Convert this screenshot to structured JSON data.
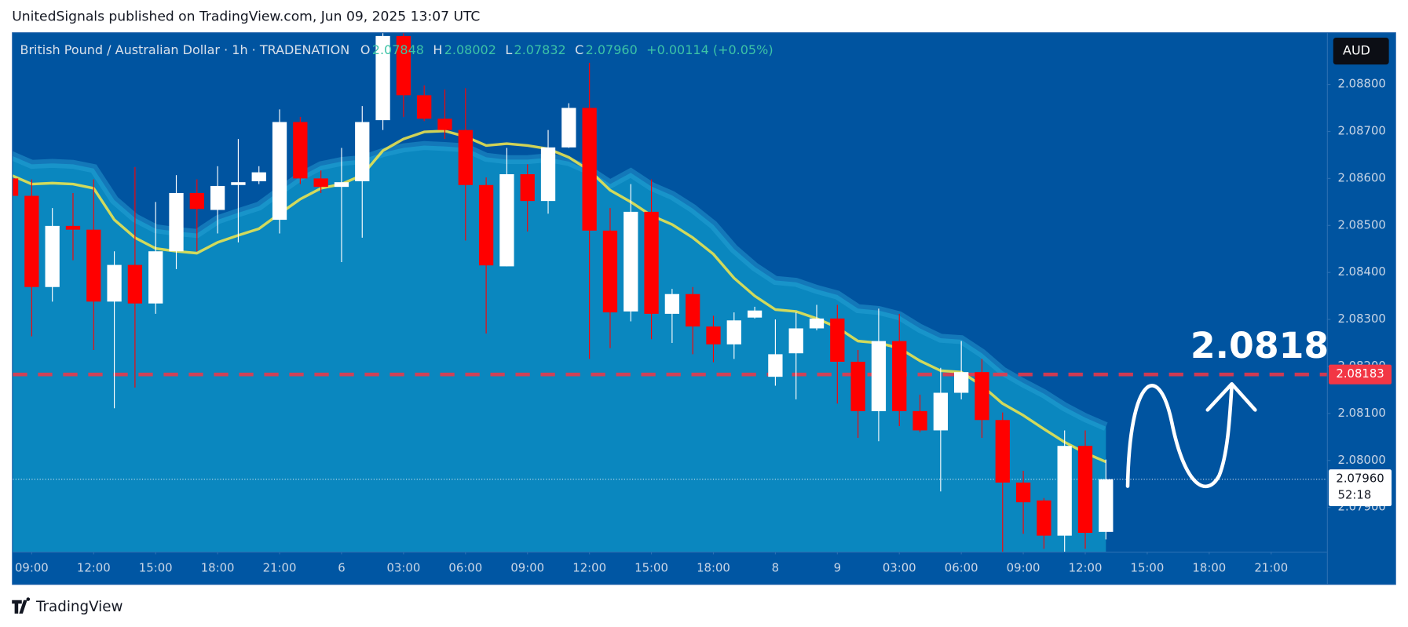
{
  "header": {
    "attribution": "UnitedSignals published on TradingView.com, Jun 09, 2025 13:07 UTC",
    "brand": "TradingView"
  },
  "chart_data": {
    "type": "candlestick",
    "symbol": "British Pound / Australian Dollar · 1h · TRADENATION",
    "ohlc_legend": [
      {
        "key": "O",
        "value": "2.07848"
      },
      {
        "key": "H",
        "value": "2.08002"
      },
      {
        "key": "L",
        "value": "2.07832"
      },
      {
        "key": "C",
        "value": "2.07960"
      }
    ],
    "change": "+0.00114 (+0.05%)",
    "currency": "AUD",
    "annotation": "2.0818",
    "up_color": "#ffffff",
    "down_color": "#ff0000",
    "open": [
      2.086,
      2.08563,
      2.08369,
      2.08499,
      2.08491,
      2.08338,
      2.08416,
      2.08334,
      2.08445,
      2.08569,
      2.08533,
      2.08586,
      2.08594,
      2.08512,
      2.0872,
      2.086,
      2.08582,
      2.08594,
      2.08724,
      2.08903,
      2.08777,
      2.08727,
      2.08703,
      2.08586,
      2.08413,
      2.08609,
      2.08552,
      2.08666,
      2.0875,
      2.08489,
      2.08317,
      2.08529,
      2.08312,
      2.08354,
      2.08285,
      2.08247,
      2.08304,
      2.08178,
      2.08228,
      2.08281,
      2.08302,
      2.0821,
      2.08105,
      2.08254,
      2.08105,
      2.08064,
      2.08144,
      2.08188,
      2.08086,
      2.07953,
      2.07915,
      2.0784,
      2.08031,
      2.07848
    ],
    "high": [
      2.086,
      2.08598,
      2.08537,
      2.08569,
      2.08598,
      2.08445,
      2.08624,
      2.0855,
      2.08607,
      2.08598,
      2.08626,
      2.08684,
      2.08626,
      2.08747,
      2.08731,
      2.08617,
      2.08665,
      2.08754,
      2.08909,
      2.08909,
      2.08798,
      2.08789,
      2.08792,
      2.08602,
      2.08665,
      2.0863,
      2.08703,
      2.0876,
      2.08846,
      2.08537,
      2.08588,
      2.08598,
      2.08365,
      2.08369,
      2.08308,
      2.08315,
      2.08327,
      2.083,
      2.08315,
      2.08331,
      2.08331,
      2.08235,
      2.08323,
      2.08312,
      2.0814,
      2.08197,
      2.08254,
      2.08216,
      2.08102,
      2.07978,
      2.0792,
      2.08064,
      2.08064,
      2.08002
    ],
    "low": [
      2.08563,
      2.08264,
      2.08338,
      2.08426,
      2.08235,
      2.08111,
      2.08155,
      2.08312,
      2.08407,
      2.08445,
      2.08483,
      2.08464,
      2.08588,
      2.08483,
      2.08588,
      2.08569,
      2.08422,
      2.08474,
      2.08703,
      2.08731,
      2.08722,
      2.08684,
      2.08468,
      2.0827,
      2.08413,
      2.08487,
      2.08525,
      2.08665,
      2.08216,
      2.08239,
      2.08296,
      2.08258,
      2.0825,
      2.08226,
      2.08209,
      2.08216,
      2.08302,
      2.08159,
      2.0813,
      2.08277,
      2.08121,
      2.08048,
      2.08041,
      2.08073,
      2.0806,
      2.07934,
      2.0813,
      2.08048,
      2.07806,
      2.07844,
      2.07812,
      2.07806,
      2.07812,
      2.07832
    ],
    "close": [
      2.08563,
      2.08369,
      2.08499,
      2.08491,
      2.08338,
      2.08416,
      2.08334,
      2.08445,
      2.08569,
      2.08535,
      2.08584,
      2.08592,
      2.08613,
      2.0872,
      2.086,
      2.08582,
      2.08592,
      2.0872,
      2.08903,
      2.08777,
      2.08727,
      2.08703,
      2.08586,
      2.08415,
      2.08609,
      2.08552,
      2.08666,
      2.0875,
      2.08489,
      2.08315,
      2.08529,
      2.08312,
      2.08354,
      2.08285,
      2.08247,
      2.08298,
      2.08319,
      2.08226,
      2.08281,
      2.08302,
      2.0821,
      2.08105,
      2.08254,
      2.08105,
      2.08064,
      2.08144,
      2.08188,
      2.08086,
      2.07953,
      2.07911,
      2.0784,
      2.08031,
      2.07846,
      2.0796
    ],
    "moving_average": {
      "color": "#f5e94a",
      "values": [
        2.08607,
        2.08588,
        2.0859,
        2.08588,
        2.08579,
        2.08512,
        2.08474,
        2.08451,
        2.08445,
        2.08441,
        2.08464,
        2.08479,
        2.08493,
        2.08525,
        2.08556,
        2.08579,
        2.08588,
        2.08607,
        2.08659,
        2.08684,
        2.08699,
        2.08701,
        2.08689,
        2.0867,
        2.08674,
        2.0867,
        2.08663,
        2.08645,
        2.08617,
        2.08575,
        2.0855,
        2.08521,
        2.08502,
        2.08474,
        2.08439,
        2.08388,
        2.0835,
        2.08321,
        2.08317,
        2.08302,
        2.08283,
        2.08254,
        2.0825,
        2.08239,
        2.08212,
        2.08191,
        2.08188,
        2.08159,
        2.08121,
        2.08096,
        2.08067,
        2.08039,
        2.08016,
        2.07997
      ]
    },
    "band": {
      "color": "#0a87bf",
      "values": [
        2.08649,
        2.0863,
        2.08632,
        2.0863,
        2.08621,
        2.08554,
        2.08516,
        2.08493,
        2.08487,
        2.08483,
        2.08512,
        2.08527,
        2.08541,
        2.08573,
        2.08604,
        2.08627,
        2.08636,
        2.0864,
        2.08655,
        2.08665,
        2.0867,
        2.08668,
        2.08665,
        2.08645,
        2.0864,
        2.0864,
        2.08644,
        2.08636,
        2.08617,
        2.08588,
        2.08612,
        2.08583,
        2.08564,
        2.08536,
        2.08501,
        2.0845,
        2.08412,
        2.08383,
        2.08379,
        2.08364,
        2.08352,
        2.08323,
        2.08319,
        2.08308,
        2.08281,
        2.0826,
        2.08257,
        2.08228,
        2.0819,
        2.08165,
        2.08142,
        2.08114,
        2.08091,
        2.08072
      ]
    },
    "level_line": {
      "value": 2.08183,
      "label": "2.08183",
      "color": "#f23645"
    },
    "last_price": {
      "value": 2.0796,
      "label": "2.07960",
      "countdown": "52:18"
    },
    "xlim": [
      0.087,
      63.7
    ],
    "xticks": [
      {
        "value": 1,
        "label": "09:00"
      },
      {
        "value": 4,
        "label": "12:00"
      },
      {
        "value": 7,
        "label": "15:00"
      },
      {
        "value": 10,
        "label": "18:00"
      },
      {
        "value": 13,
        "label": "21:00"
      },
      {
        "value": 16,
        "label": "6"
      },
      {
        "value": 19,
        "label": "03:00"
      },
      {
        "value": 22,
        "label": "06:00"
      },
      {
        "value": 25,
        "label": "09:00"
      },
      {
        "value": 28,
        "label": "12:00"
      },
      {
        "value": 31,
        "label": "15:00"
      },
      {
        "value": 34,
        "label": "18:00"
      },
      {
        "value": 37,
        "label": "8"
      },
      {
        "value": 40,
        "label": "9"
      },
      {
        "value": 43,
        "label": "03:00"
      },
      {
        "value": 46,
        "label": "06:00"
      },
      {
        "value": 49,
        "label": "09:00"
      },
      {
        "value": 52,
        "label": "12:00"
      },
      {
        "value": 55,
        "label": "15:00"
      },
      {
        "value": 58,
        "label": "18:00"
      },
      {
        "value": 61,
        "label": "21:00"
      }
    ],
    "ylim": [
      2.07806,
      2.08909
    ],
    "yticks": [
      {
        "value": 2.079,
        "label": "2.07900"
      },
      {
        "value": 2.08,
        "label": "2.08000"
      },
      {
        "value": 2.081,
        "label": "2.08100"
      },
      {
        "value": 2.082,
        "label": "2.08200"
      },
      {
        "value": 2.083,
        "label": "2.08300"
      },
      {
        "value": 2.084,
        "label": "2.08400"
      },
      {
        "value": 2.085,
        "label": "2.08500"
      },
      {
        "value": 2.086,
        "label": "2.08600"
      },
      {
        "value": 2.087,
        "label": "2.08700"
      },
      {
        "value": 2.088,
        "label": "2.08800"
      }
    ]
  }
}
